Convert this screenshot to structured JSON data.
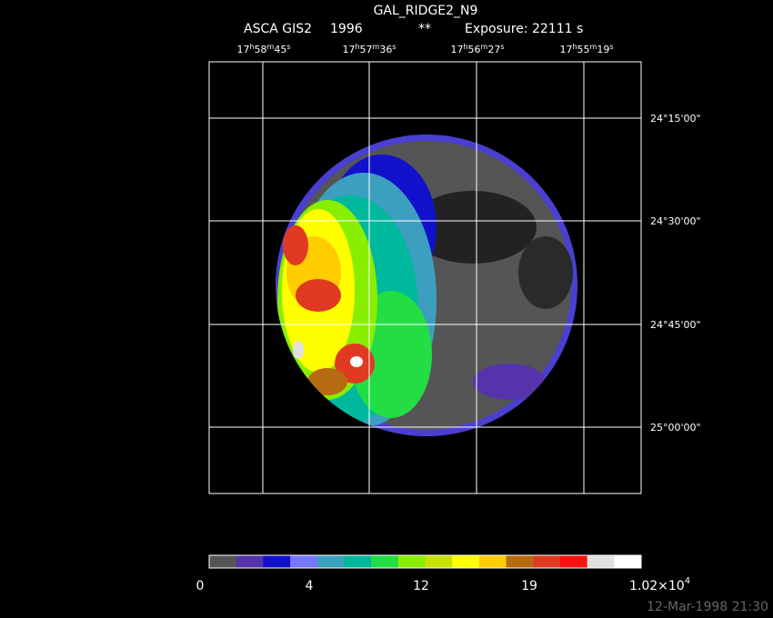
{
  "header": {
    "title": "GAL_RIDGE2_N9",
    "instrument": "ASCA GIS2",
    "year": "1996",
    "flag": "**",
    "exposure": "Exposure: 22111 s"
  },
  "ra_labels": [
    [
      "17",
      "h",
      "58",
      "m",
      "45",
      "s"
    ],
    [
      "17",
      "h",
      "57",
      "m",
      "36",
      "s"
    ],
    [
      "17",
      "h",
      "56",
      "m",
      "27",
      "s"
    ],
    [
      "17",
      "h",
      "55",
      "m",
      "19",
      "s"
    ]
  ],
  "dec_labels": [
    "24°15'00\"",
    "24°30'00\"",
    "24°45'00\"",
    "25°00'00\""
  ],
  "colorbar": {
    "colors": [
      "#555555",
      "#5533aa",
      "#1111cc",
      "#7777ff",
      "#3d9fbf",
      "#00b89c",
      "#22dd44",
      "#88ee00",
      "#c8e000",
      "#ffff00",
      "#ffcc00",
      "#b86a10",
      "#e03a22",
      "#ff1010",
      "#e0e0e0",
      "#ffffff"
    ],
    "labels": [
      "0",
      "4",
      "12",
      "19"
    ],
    "max_label": {
      "mantissa": "1.02×10",
      "exponent": "4"
    }
  },
  "timestamp": "12-Mar-1998 21:30"
}
